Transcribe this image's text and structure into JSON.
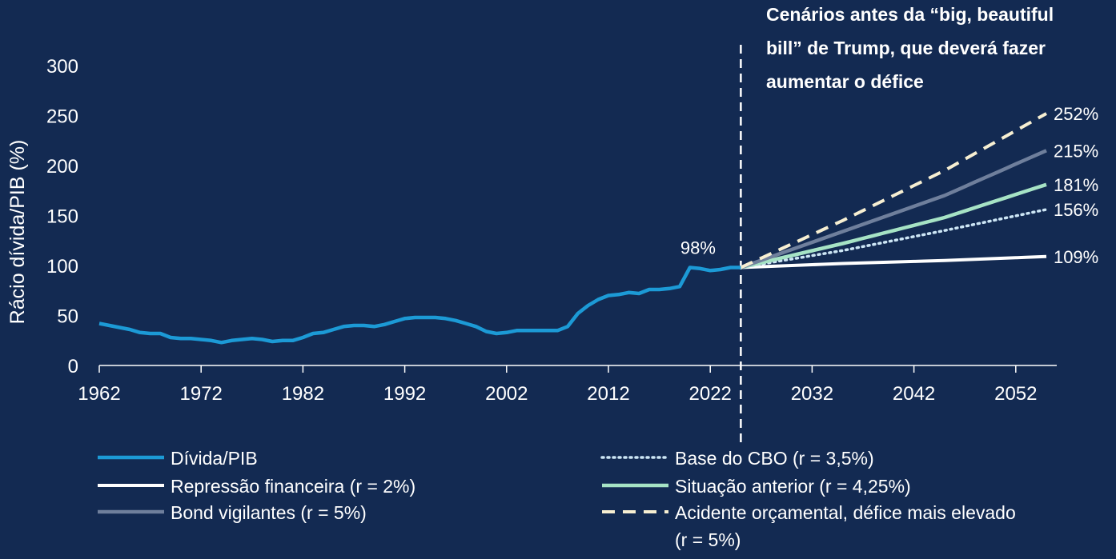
{
  "colors": {
    "background": "#132a52",
    "historical": "#1c9ad6",
    "repression": "#ffffff",
    "vigilantes": "#6f7f9c",
    "cbo": "#cde6f5",
    "prior": "#a6e3c5",
    "accident": "#f7efd2",
    "divider": "#ffffff"
  },
  "chart_data": {
    "type": "line",
    "title": "",
    "ylabel": "Rácio dívida/PIB (%)",
    "xlabel": "",
    "xlim": [
      1962,
      2055
    ],
    "ylim": [
      0,
      300
    ],
    "x_ticks": [
      1962,
      1972,
      1982,
      1992,
      2002,
      2012,
      2022,
      2032,
      2042,
      2052
    ],
    "y_ticks": [
      0,
      50,
      100,
      150,
      200,
      250,
      300
    ],
    "grid": false,
    "divider_x": 2025,
    "annotation": "Cenários antes da “big, beautiful bill” de Trump, que deverá fazer aumentar o défice",
    "point_label": {
      "text": "98%",
      "x": 2023,
      "y": 98
    },
    "series": [
      {
        "id": "historical",
        "name": "Dívida/PIB",
        "style": "solid",
        "points": [
          [
            1962,
            42
          ],
          [
            1963,
            40
          ],
          [
            1964,
            38
          ],
          [
            1965,
            36
          ],
          [
            1966,
            33
          ],
          [
            1967,
            32
          ],
          [
            1968,
            32
          ],
          [
            1969,
            28
          ],
          [
            1970,
            27
          ],
          [
            1971,
            27
          ],
          [
            1972,
            26
          ],
          [
            1973,
            25
          ],
          [
            1974,
            23
          ],
          [
            1975,
            25
          ],
          [
            1976,
            26
          ],
          [
            1977,
            27
          ],
          [
            1978,
            26
          ],
          [
            1979,
            24
          ],
          [
            1980,
            25
          ],
          [
            1981,
            25
          ],
          [
            1982,
            28
          ],
          [
            1983,
            32
          ],
          [
            1984,
            33
          ],
          [
            1985,
            36
          ],
          [
            1986,
            39
          ],
          [
            1987,
            40
          ],
          [
            1988,
            40
          ],
          [
            1989,
            39
          ],
          [
            1990,
            41
          ],
          [
            1991,
            44
          ],
          [
            1992,
            47
          ],
          [
            1993,
            48
          ],
          [
            1994,
            48
          ],
          [
            1995,
            48
          ],
          [
            1996,
            47
          ],
          [
            1997,
            45
          ],
          [
            1998,
            42
          ],
          [
            1999,
            39
          ],
          [
            2000,
            34
          ],
          [
            2001,
            32
          ],
          [
            2002,
            33
          ],
          [
            2003,
            35
          ],
          [
            2004,
            35
          ],
          [
            2005,
            35
          ],
          [
            2006,
            35
          ],
          [
            2007,
            35
          ],
          [
            2008,
            39
          ],
          [
            2009,
            52
          ],
          [
            2010,
            60
          ],
          [
            2011,
            66
          ],
          [
            2012,
            70
          ],
          [
            2013,
            71
          ],
          [
            2014,
            73
          ],
          [
            2015,
            72
          ],
          [
            2016,
            76
          ],
          [
            2017,
            76
          ],
          [
            2018,
            77
          ],
          [
            2019,
            79
          ],
          [
            2020,
            98
          ],
          [
            2021,
            97
          ],
          [
            2022,
            95
          ],
          [
            2023,
            96
          ],
          [
            2024,
            98
          ],
          [
            2025,
            98
          ]
        ],
        "end_label": ""
      },
      {
        "id": "cbo",
        "name": "Base do CBO (r = 3,5%)",
        "style": "dotted",
        "points": [
          [
            2025,
            98
          ],
          [
            2035,
            115
          ],
          [
            2045,
            135
          ],
          [
            2055,
            156
          ]
        ],
        "end_label": "156%"
      },
      {
        "id": "repression",
        "name": "Repressão financeira (r = 2%)",
        "style": "solid",
        "points": [
          [
            2025,
            98
          ],
          [
            2035,
            102
          ],
          [
            2045,
            105
          ],
          [
            2055,
            109
          ]
        ],
        "end_label": "109%"
      },
      {
        "id": "prior",
        "name": "Situação anterior (r = 4,25%)",
        "style": "solid",
        "points": [
          [
            2025,
            98
          ],
          [
            2035,
            122
          ],
          [
            2045,
            148
          ],
          [
            2055,
            181
          ]
        ],
        "end_label": "181%"
      },
      {
        "id": "vigilantes",
        "name": "Bond vigilantes (r = 5%)",
        "style": "solid",
        "points": [
          [
            2025,
            98
          ],
          [
            2035,
            134
          ],
          [
            2045,
            170
          ],
          [
            2055,
            215
          ]
        ],
        "end_label": "215%"
      },
      {
        "id": "accident",
        "name": "Acidente orçamental, défice mais elevado (r = 5%)",
        "style": "dashed",
        "points": [
          [
            2025,
            98
          ],
          [
            2035,
            145
          ],
          [
            2045,
            195
          ],
          [
            2055,
            252
          ]
        ],
        "end_label": "252%"
      }
    ],
    "legend": {
      "placement": "bottom",
      "items": [
        {
          "series": "historical",
          "label": "Dívida/PIB"
        },
        {
          "series": "repression",
          "label": "Repressão financeira (r = 2%)"
        },
        {
          "series": "vigilantes",
          "label": "Bond vigilantes (r = 5%)"
        },
        {
          "series": "cbo",
          "label": "Base do CBO (r = 3,5%)"
        },
        {
          "series": "prior",
          "label": "Situação anterior (r = 4,25%)"
        },
        {
          "series": "accident",
          "label": "Acidente orçamental, défice mais elevado",
          "label_line2": "(r = 5%)"
        }
      ]
    }
  }
}
